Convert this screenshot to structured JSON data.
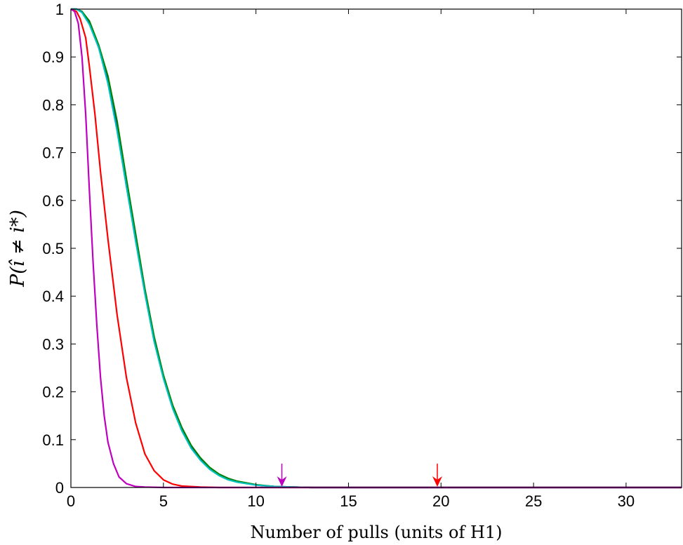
{
  "chart_data": {
    "type": "line",
    "xlabel": "Number of pulls (units of H1)",
    "ylabel": "P(î ≠ i*)",
    "xlim": [
      0,
      33
    ],
    "ylim": [
      0,
      1
    ],
    "xticks": [
      0,
      5,
      10,
      15,
      20,
      25,
      30
    ],
    "yticks": [
      0,
      0.1,
      0.2,
      0.3,
      0.4,
      0.5,
      0.6,
      0.7,
      0.8,
      0.9,
      1
    ],
    "ytick_labels": [
      "0",
      "0.1",
      "0.2",
      "0.3",
      "0.4",
      "0.5",
      "0.6",
      "0.7",
      "0.8",
      "0.9",
      "1"
    ],
    "grid": false,
    "series": [
      {
        "color": "#0000ff",
        "x": [
          0,
          0.3,
          0.6,
          1,
          1.5,
          2,
          2.5,
          3,
          3.5,
          4,
          4.5,
          5,
          5.5,
          6,
          6.5,
          7,
          7.5,
          8,
          8.5,
          9,
          10,
          11,
          12,
          13,
          15,
          33
        ],
        "y": [
          1,
          1,
          0.995,
          0.97,
          0.92,
          0.85,
          0.75,
          0.63,
          0.52,
          0.41,
          0.31,
          0.23,
          0.17,
          0.12,
          0.085,
          0.06,
          0.04,
          0.027,
          0.018,
          0.012,
          0.005,
          0.002,
          0.001,
          0,
          0,
          0
        ]
      },
      {
        "color": "#008000",
        "x": [
          0,
          0.3,
          0.6,
          1,
          1.5,
          2,
          2.5,
          3,
          3.5,
          4,
          4.5,
          5,
          5.5,
          6,
          6.5,
          7,
          7.5,
          8,
          8.5,
          9,
          10,
          11,
          12,
          13,
          15,
          33
        ],
        "y": [
          1,
          1,
          0.995,
          0.975,
          0.925,
          0.86,
          0.765,
          0.645,
          0.53,
          0.415,
          0.315,
          0.235,
          0.172,
          0.125,
          0.088,
          0.062,
          0.042,
          0.028,
          0.019,
          0.013,
          0.006,
          0.002,
          0.001,
          0,
          0,
          0
        ]
      },
      {
        "color": "#00bfbf",
        "x": [
          0,
          0.3,
          0.6,
          1,
          1.5,
          2,
          2.5,
          3,
          3.5,
          4,
          4.5,
          5,
          5.5,
          6,
          6.5,
          7,
          7.5,
          8,
          8.5,
          9,
          10,
          11,
          12,
          13,
          15,
          33
        ],
        "y": [
          1,
          1,
          0.993,
          0.968,
          0.92,
          0.845,
          0.745,
          0.63,
          0.515,
          0.405,
          0.305,
          0.228,
          0.165,
          0.118,
          0.082,
          0.057,
          0.038,
          0.025,
          0.016,
          0.011,
          0.005,
          0.002,
          0.001,
          0,
          0,
          0
        ]
      },
      {
        "color": "#ff0000",
        "x": [
          0,
          0.3,
          0.5,
          0.8,
          1,
          1.3,
          1.6,
          2,
          2.5,
          3,
          3.5,
          4,
          4.5,
          5,
          5.5,
          6,
          7,
          8,
          10,
          33
        ],
        "y": [
          1,
          0.995,
          0.98,
          0.94,
          0.88,
          0.78,
          0.66,
          0.52,
          0.36,
          0.23,
          0.135,
          0.07,
          0.035,
          0.016,
          0.007,
          0.003,
          0.001,
          0,
          0,
          0
        ]
      },
      {
        "color": "#bf00bf",
        "x": [
          0,
          0.2,
          0.4,
          0.6,
          0.8,
          1,
          1.2,
          1.4,
          1.6,
          1.8,
          2,
          2.3,
          2.6,
          3,
          3.5,
          4,
          5,
          33
        ],
        "y": [
          1,
          0.995,
          0.97,
          0.9,
          0.78,
          0.62,
          0.47,
          0.34,
          0.23,
          0.15,
          0.095,
          0.05,
          0.022,
          0.008,
          0.002,
          0.001,
          0,
          0
        ]
      }
    ],
    "markers": [
      {
        "type": "arrow-down",
        "x": 11.4,
        "color": "#bf00bf"
      },
      {
        "type": "arrow-down",
        "x": 19.8,
        "color": "#ff0000"
      }
    ]
  }
}
